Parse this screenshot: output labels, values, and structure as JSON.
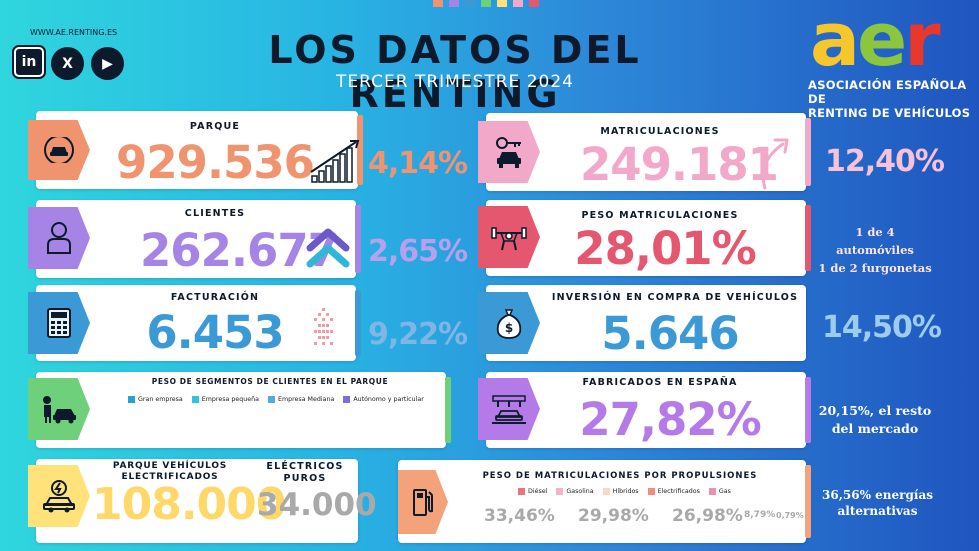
{
  "header": {
    "website": "WWW.AE.RENTING.ES",
    "title": "LOS DATOS DEL RENTING",
    "subtitle": "TERCER TRIMESTRE 2024",
    "social": [
      "in",
      "X",
      "▶"
    ],
    "logo_letters": [
      "a",
      "e",
      "r"
    ],
    "org_line1": "ASOCIACIÓN ESPAÑOLA DE",
    "org_line2": "RENTING DE VEHÍCULOS"
  },
  "colors": {
    "salmon": "#f0946f",
    "purple": "#a684e6",
    "blue": "#3b9ad6",
    "pink": "#f2a8c9",
    "red": "#e5566f",
    "lavender": "#b47be8",
    "green": "#6ed07a",
    "yellow": "#ffe37a",
    "orange": "#f4a27a",
    "dots": [
      "#f0946f",
      "#a684e6",
      "#3b9ad6",
      "#6ed07a",
      "#ffe37a",
      "#f2a8c9",
      "#e5566f"
    ]
  },
  "left": {
    "parque": {
      "label": "PARQUE",
      "value": "929.536",
      "change": "4,14%",
      "icon": "car-icon"
    },
    "clientes": {
      "label": "CLIENTES",
      "value": "262.677",
      "change": "2,65%",
      "icon": "person-icon"
    },
    "facturacion": {
      "label": "FACTURACIÓN",
      "value": "6.453",
      "change": "9,22%",
      "icon": "calculator-icon"
    },
    "segmentos": {
      "label": "PESO DE SEGMENTOS DE CLIENTES EN EL PARQUE",
      "legend": [
        {
          "name": "Gran empresa",
          "color": "#2aa1d3"
        },
        {
          "name": "Empresa pequeña",
          "color": "#32c4d6"
        },
        {
          "name": "Empresa Mediana",
          "color": "#58a7e0"
        },
        {
          "name": "Autónomo y particular",
          "color": "#7c6fd2"
        }
      ],
      "icon": "person-car-icon"
    },
    "electrificados": {
      "label_line1": "PARQUE VEHÍCULOS",
      "label_line2": "ELECTRIFICADOS",
      "value": "108.000",
      "puros_line1": "ELÉCTRICOS",
      "puros_line2": "PUROS",
      "puros_value": "34.000",
      "icon": "electric-car-icon"
    }
  },
  "right": {
    "matriculaciones": {
      "label": "MATRICULACIONES",
      "value": "249.181",
      "change": "12,40%",
      "icon": "car-key-icon"
    },
    "peso": {
      "label": "PESO MATRICULACIONES",
      "value": "28,01%",
      "note_line1": "1 de 4 automóviles",
      "note_line2": "1 de 2 furgonetas",
      "icon": "weightlifter-icon"
    },
    "inversion": {
      "label": "INVERSIÓN EN COMPRA DE VEHÍCULOS",
      "value": "5.646",
      "change": "14,50%",
      "icon": "money-bag-icon"
    },
    "fabricados": {
      "label": "FABRICADOS  EN ESPAÑA",
      "value": "27,82%",
      "note_line1": "20,15%, el resto",
      "note_line2": "del mercado",
      "icon": "factory-icon"
    },
    "propulsiones": {
      "label": "PESO DE MATRICULACIONES POR PROPULSIONES",
      "legend": [
        {
          "name": "Diésel",
          "color": "#e5757f"
        },
        {
          "name": "Gasolina",
          "color": "#f2b3cf"
        },
        {
          "name": "Híbridos",
          "color": "#f8d8c8"
        },
        {
          "name": "Electrificados",
          "color": "#f28b7a"
        },
        {
          "name": "Gas",
          "color": "#ef8fb0"
        }
      ],
      "values": [
        "33,46%",
        "29,98%",
        "26,98%",
        "8,79%",
        "0,79%"
      ],
      "note_line1": "36,56% energías",
      "note_line2": "alternativas",
      "icon": "fuel-pump-icon"
    }
  }
}
